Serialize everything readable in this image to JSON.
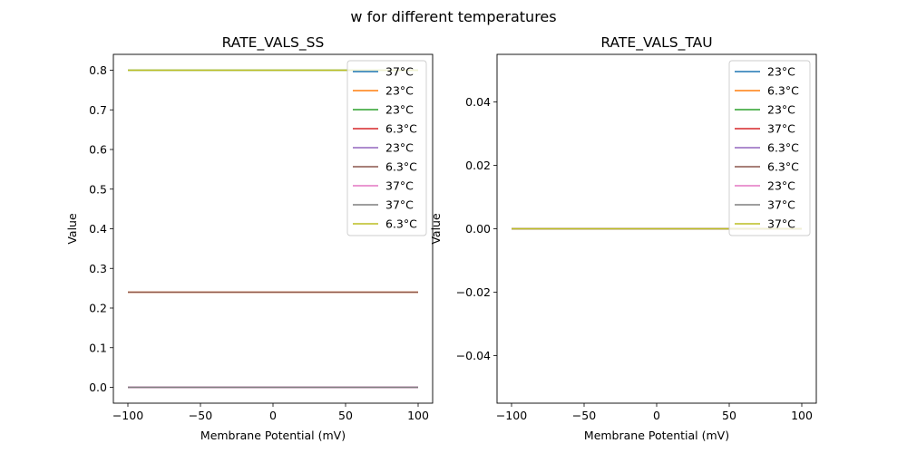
{
  "suptitle": "w for different temperatures",
  "chart_data": [
    {
      "type": "line",
      "title": "RATE_VALS_SS",
      "xlabel": "Membrane Potential (mV)",
      "ylabel": "Value",
      "xlim": [
        -110,
        110
      ],
      "ylim": [
        -0.04,
        0.84
      ],
      "xticks": [
        -100,
        -50,
        0,
        50,
        100
      ],
      "xtick_labels": [
        "−100",
        "−50",
        "0",
        "50",
        "100"
      ],
      "yticks": [
        0.0,
        0.1,
        0.2,
        0.3,
        0.4,
        0.5,
        0.6,
        0.7,
        0.8
      ],
      "ytick_labels": [
        "0.0",
        "0.1",
        "0.2",
        "0.3",
        "0.4",
        "0.5",
        "0.6",
        "0.7",
        "0.8"
      ],
      "legend_position": "top-right",
      "series": [
        {
          "name": "37°C",
          "color": "#1f77b4",
          "x": [
            -100,
            100
          ],
          "y": [
            0.0,
            0.0
          ]
        },
        {
          "name": "23°C",
          "color": "#ff7f0e",
          "x": [
            -100,
            100
          ],
          "y": [
            0.24,
            0.24
          ]
        },
        {
          "name": "23°C",
          "color": "#2ca02c",
          "x": [
            -100,
            100
          ],
          "y": [
            0.8,
            0.8
          ]
        },
        {
          "name": "6.3°C",
          "color": "#d62728",
          "x": [
            -100,
            100
          ],
          "y": [
            0.0,
            0.0
          ]
        },
        {
          "name": "23°C",
          "color": "#9467bd",
          "x": [
            -100,
            100
          ],
          "y": [
            0.0,
            0.0
          ]
        },
        {
          "name": "6.3°C",
          "color": "#8c564b",
          "x": [
            -100,
            100
          ],
          "y": [
            0.24,
            0.24
          ]
        },
        {
          "name": "37°C",
          "color": "#e377c2",
          "x": [
            -100,
            100
          ],
          "y": [
            0.0,
            0.0
          ]
        },
        {
          "name": "37°C",
          "color": "#7f7f7f",
          "x": [
            -100,
            100
          ],
          "y": [
            0.0,
            0.0
          ]
        },
        {
          "name": "6.3°C",
          "color": "#bcbd22",
          "x": [
            -100,
            100
          ],
          "y": [
            0.8,
            0.8
          ]
        }
      ]
    },
    {
      "type": "line",
      "title": "RATE_VALS_TAU",
      "xlabel": "Membrane Potential (mV)",
      "ylabel": "Value",
      "xlim": [
        -110,
        110
      ],
      "ylim": [
        -0.055,
        0.055
      ],
      "xticks": [
        -100,
        -50,
        0,
        50,
        100
      ],
      "xtick_labels": [
        "−100",
        "−50",
        "0",
        "50",
        "100"
      ],
      "yticks": [
        -0.04,
        -0.02,
        0.0,
        0.02,
        0.04
      ],
      "ytick_labels": [
        "−0.04",
        "−0.02",
        "0.00",
        "0.02",
        "0.04"
      ],
      "legend_position": "top-right",
      "series": [
        {
          "name": "23°C",
          "color": "#1f77b4",
          "x": [
            -100,
            100
          ],
          "y": [
            0.0,
            0.0
          ]
        },
        {
          "name": "6.3°C",
          "color": "#ff7f0e",
          "x": [
            -100,
            100
          ],
          "y": [
            0.0,
            0.0
          ]
        },
        {
          "name": "23°C",
          "color": "#2ca02c",
          "x": [
            -100,
            100
          ],
          "y": [
            0.0,
            0.0
          ]
        },
        {
          "name": "37°C",
          "color": "#d62728",
          "x": [
            -100,
            100
          ],
          "y": [
            0.0,
            0.0
          ]
        },
        {
          "name": "6.3°C",
          "color": "#9467bd",
          "x": [
            -100,
            100
          ],
          "y": [
            0.0,
            0.0
          ]
        },
        {
          "name": "6.3°C",
          "color": "#8c564b",
          "x": [
            -100,
            100
          ],
          "y": [
            0.0,
            0.0
          ]
        },
        {
          "name": "23°C",
          "color": "#e377c2",
          "x": [
            -100,
            100
          ],
          "y": [
            0.0,
            0.0
          ]
        },
        {
          "name": "37°C",
          "color": "#7f7f7f",
          "x": [
            -100,
            100
          ],
          "y": [
            0.0,
            0.0
          ]
        },
        {
          "name": "37°C",
          "color": "#bcbd22",
          "x": [
            -100,
            100
          ],
          "y": [
            0.0,
            0.0
          ]
        }
      ]
    }
  ]
}
